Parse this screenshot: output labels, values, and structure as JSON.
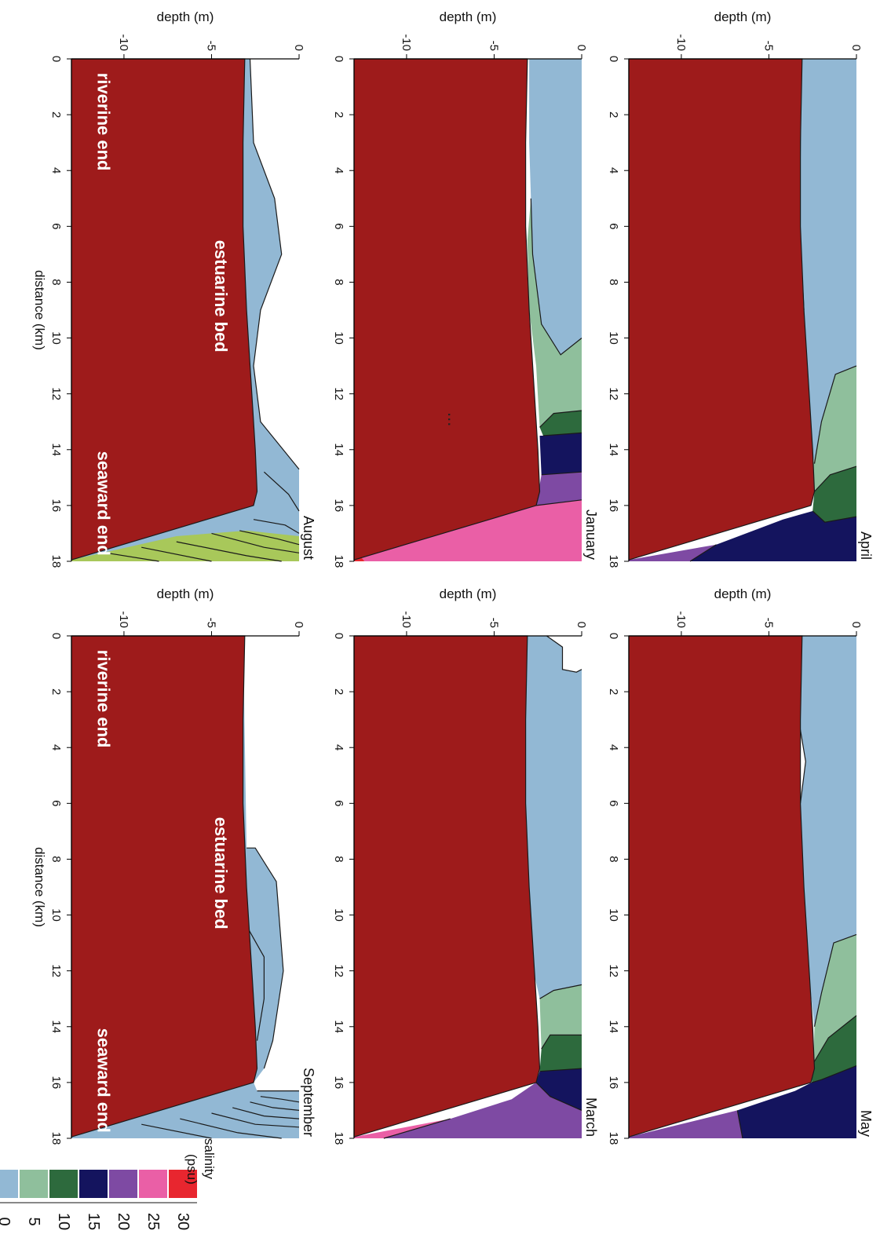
{
  "legend": {
    "title_line1": "salinity",
    "title_line2": "(psu)",
    "items": [
      {
        "label": "30",
        "color": "#e8262f"
      },
      {
        "label": "25",
        "color": "#ea5fa6"
      },
      {
        "label": "20",
        "color": "#7e4aa3"
      },
      {
        "label": "15",
        "color": "#14145e"
      },
      {
        "label": "10",
        "color": "#2d6a3d"
      },
      {
        "label": "5",
        "color": "#8fbf9c"
      },
      {
        "label": "0",
        "color": "#92b8d4"
      }
    ]
  },
  "colors": {
    "bed": "#9e1b1b",
    "fresh": "#92b8d4",
    "lightgreen": "#8fbf9c",
    "green": "#2d6a3d",
    "navy": "#14145e",
    "purple": "#7e4aa3",
    "pink": "#ea5fa6",
    "red": "#e8262f",
    "yellowgreen": "#a8c85a"
  },
  "ellipsis": "...",
  "chart_data": [
    {
      "type": "contour",
      "panel_label": "April",
      "ylabel": "depth (m)",
      "xlabel": "",
      "xlim": [
        0,
        18
      ],
      "ylim": [
        -13,
        0
      ],
      "x_ticks": [
        "0",
        "2",
        "4",
        "6",
        "8",
        "10",
        "12",
        "14",
        "16",
        "18"
      ],
      "y_ticks": [
        "0",
        "-5",
        "-10"
      ],
      "annotations": []
    },
    {
      "type": "contour",
      "panel_label": "May",
      "ylabel": "depth (m)",
      "xlabel": "",
      "xlim": [
        0,
        18
      ],
      "ylim": [
        -13,
        0
      ],
      "x_ticks": [
        "0",
        "2",
        "4",
        "6",
        "8",
        "10",
        "12",
        "14",
        "16",
        "18"
      ],
      "y_ticks": [
        "0",
        "-5",
        "-10"
      ],
      "annotations": []
    },
    {
      "type": "contour",
      "panel_label": "January",
      "ylabel": "depth (m)",
      "xlabel": "",
      "xlim": [
        0,
        18
      ],
      "ylim": [
        -13,
        0
      ],
      "x_ticks": [
        "0",
        "2",
        "4",
        "6",
        "8",
        "10",
        "12",
        "14",
        "16",
        "18"
      ],
      "y_ticks": [
        "0",
        "-5",
        "-10"
      ],
      "annotations": []
    },
    {
      "type": "contour",
      "panel_label": "March",
      "ylabel": "depth (m)",
      "xlabel": "",
      "xlim": [
        0,
        18
      ],
      "ylim": [
        -13,
        0
      ],
      "x_ticks": [
        "0",
        "2",
        "4",
        "6",
        "8",
        "10",
        "12",
        "14",
        "16",
        "18"
      ],
      "y_ticks": [
        "0",
        "-5",
        "-10"
      ],
      "annotations": []
    },
    {
      "type": "contour",
      "panel_label": "August",
      "ylabel": "depth (m)",
      "xlabel": "distance (km)",
      "xlim": [
        0,
        18
      ],
      "ylim": [
        -13,
        0
      ],
      "x_ticks": [
        "0",
        "2",
        "4",
        "6",
        "8",
        "10",
        "12",
        "14",
        "16",
        "18"
      ],
      "y_ticks": [
        "0",
        "-5",
        "-10"
      ],
      "annotations": [
        "riverine end",
        "estuarine bed",
        "seaward end"
      ]
    },
    {
      "type": "contour",
      "panel_label": "September",
      "ylabel": "depth (m)",
      "xlabel": "distance (km)",
      "xlim": [
        0,
        18
      ],
      "ylim": [
        -13,
        0
      ],
      "x_ticks": [
        "0",
        "2",
        "4",
        "6",
        "8",
        "10",
        "12",
        "14",
        "16",
        "18"
      ],
      "y_ticks": [
        "0",
        "-5",
        "-10"
      ],
      "annotations": [
        "riverine end",
        "estuarine bed",
        "seaward end"
      ]
    }
  ]
}
